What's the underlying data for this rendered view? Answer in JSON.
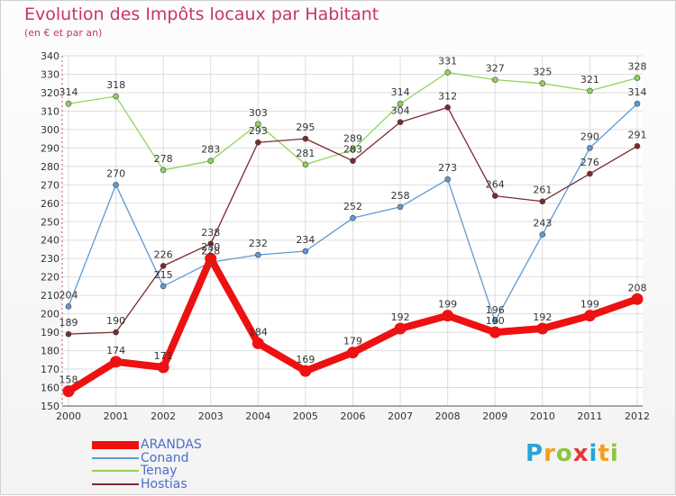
{
  "title": "Evolution des Impôts locaux par Habitant",
  "subtitle": "(en € et par an)",
  "logo": {
    "text": "Proxiti",
    "letters": [
      "P",
      "r",
      "o",
      "x",
      "i",
      "t",
      "i"
    ],
    "colors": [
      "#2aa3d8",
      "#f2a01d",
      "#8dc63f",
      "#e53935",
      "#2aa3d8",
      "#f2a01d",
      "#8dc63f"
    ]
  },
  "chart_data": {
    "type": "line",
    "title": "Evolution des Impôts locaux par Habitant",
    "subtitle": "(en € et par an)",
    "xlabel": "",
    "ylabel": "",
    "x": [
      "2000",
      "2001",
      "2002",
      "2003",
      "2004",
      "2005",
      "2006",
      "2007",
      "2008",
      "2009",
      "2010",
      "2011",
      "2012"
    ],
    "ylim": [
      150,
      340
    ],
    "yticks": [
      150,
      160,
      170,
      180,
      190,
      200,
      210,
      220,
      230,
      240,
      250,
      260,
      270,
      280,
      290,
      300,
      310,
      320,
      330,
      340
    ],
    "grid": true,
    "legend_position": "bottom-left",
    "series": [
      {
        "name": "Tenay",
        "color": "#8fd45a",
        "values": [
          314,
          318,
          278,
          283,
          303,
          281,
          289,
          314,
          331,
          327,
          325,
          321,
          328
        ]
      },
      {
        "name": "Conand",
        "color": "#5b9ad6",
        "values": [
          204,
          270,
          215,
          228,
          232,
          234,
          252,
          258,
          273,
          196,
          243,
          290,
          314
        ]
      },
      {
        "name": "Hostias",
        "color": "#7b2a2f",
        "values": [
          189,
          190,
          226,
          238,
          293,
          295,
          283,
          304,
          312,
          264,
          261,
          276,
          291
        ]
      },
      {
        "name": "ARANDAS",
        "color": "#ee1111",
        "values": [
          158,
          174,
          171,
          230,
          184,
          169,
          179,
          192,
          199,
          190,
          192,
          199,
          208
        ]
      }
    ],
    "legend": [
      "ARANDAS",
      "Conand",
      "Tenay",
      "Hostias"
    ]
  }
}
